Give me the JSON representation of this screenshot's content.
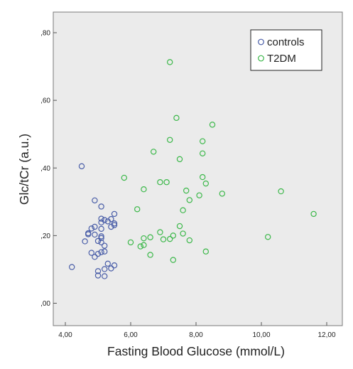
{
  "chart_data": {
    "type": "scatter",
    "xlabel": "Fasting Blood Glucose (mmol/L)",
    "ylabel": "Glc/tCr (a.u.)",
    "xlim": [
      4.0,
      12.0
    ],
    "ylim": [
      0.0,
      0.8
    ],
    "x_ticks": [
      "4,00",
      "6,00",
      "8,00",
      "10,00",
      "12,00"
    ],
    "y_ticks": [
      ",00",
      ",20",
      ",40",
      ",60",
      ",80"
    ],
    "grid": false,
    "plot_background": "#ebebeb",
    "legend_position": "top-right",
    "series": [
      {
        "name": "controls",
        "color": "#4a5ea8",
        "marker": "circle-open",
        "points": [
          [
            4.5,
            0.405
          ],
          [
            4.2,
            0.107
          ],
          [
            4.6,
            0.183
          ],
          [
            4.7,
            0.204
          ],
          [
            4.7,
            0.207
          ],
          [
            4.8,
            0.221
          ],
          [
            4.9,
            0.226
          ],
          [
            4.9,
            0.203
          ],
          [
            4.8,
            0.149
          ],
          [
            4.9,
            0.137
          ],
          [
            4.9,
            0.304
          ],
          [
            5.0,
            0.184
          ],
          [
            5.0,
            0.146
          ],
          [
            5.0,
            0.095
          ],
          [
            5.0,
            0.082
          ],
          [
            5.1,
            0.286
          ],
          [
            5.1,
            0.25
          ],
          [
            5.1,
            0.239
          ],
          [
            5.1,
            0.22
          ],
          [
            5.1,
            0.198
          ],
          [
            5.1,
            0.193
          ],
          [
            5.1,
            0.18
          ],
          [
            5.1,
            0.151
          ],
          [
            5.2,
            0.246
          ],
          [
            5.2,
            0.17
          ],
          [
            5.2,
            0.153
          ],
          [
            5.2,
            0.101
          ],
          [
            5.2,
            0.08
          ],
          [
            5.3,
            0.242
          ],
          [
            5.3,
            0.117
          ],
          [
            5.4,
            0.249
          ],
          [
            5.4,
            0.226
          ],
          [
            5.4,
            0.103
          ],
          [
            5.5,
            0.264
          ],
          [
            5.5,
            0.236
          ],
          [
            5.5,
            0.231
          ],
          [
            5.5,
            0.112
          ]
        ]
      },
      {
        "name": "T2DM",
        "color": "#3cb84a",
        "marker": "circle-open",
        "points": [
          [
            7.2,
            0.713
          ],
          [
            7.4,
            0.548
          ],
          [
            8.5,
            0.528
          ],
          [
            7.2,
            0.483
          ],
          [
            8.2,
            0.479
          ],
          [
            6.7,
            0.448
          ],
          [
            8.2,
            0.443
          ],
          [
            7.5,
            0.426
          ],
          [
            5.8,
            0.371
          ],
          [
            8.2,
            0.373
          ],
          [
            6.9,
            0.358
          ],
          [
            7.1,
            0.358
          ],
          [
            8.3,
            0.354
          ],
          [
            6.4,
            0.337
          ],
          [
            7.7,
            0.333
          ],
          [
            8.8,
            0.324
          ],
          [
            10.6,
            0.331
          ],
          [
            8.1,
            0.319
          ],
          [
            7.8,
            0.305
          ],
          [
            6.2,
            0.278
          ],
          [
            7.6,
            0.275
          ],
          [
            11.6,
            0.264
          ],
          [
            7.5,
            0.228
          ],
          [
            6.9,
            0.21
          ],
          [
            7.6,
            0.206
          ],
          [
            7.3,
            0.2
          ],
          [
            10.2,
            0.196
          ],
          [
            6.6,
            0.195
          ],
          [
            6.4,
            0.192
          ],
          [
            7.0,
            0.189
          ],
          [
            7.2,
            0.19
          ],
          [
            7.8,
            0.186
          ],
          [
            6.0,
            0.18
          ],
          [
            6.3,
            0.168
          ],
          [
            6.4,
            0.172
          ],
          [
            8.3,
            0.153
          ],
          [
            6.6,
            0.143
          ],
          [
            7.3,
            0.128
          ]
        ]
      }
    ]
  }
}
